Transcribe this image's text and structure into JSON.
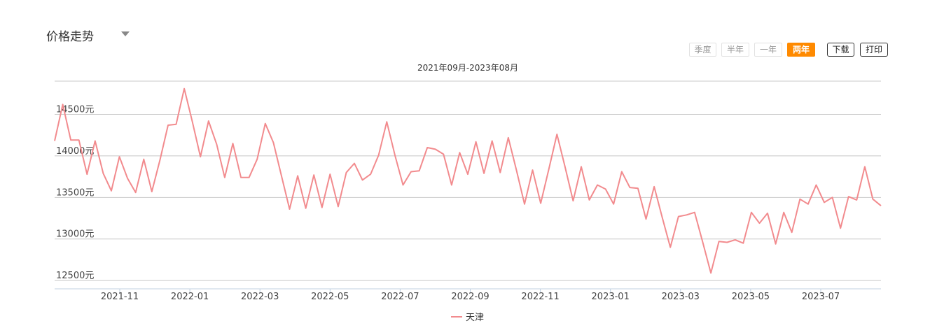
{
  "header": {
    "title": "价格走势",
    "dropdown_icon": "caret-down-icon"
  },
  "range_buttons": [
    {
      "label": "季度",
      "active": false
    },
    {
      "label": "半年",
      "active": false
    },
    {
      "label": "一年",
      "active": false
    },
    {
      "label": "两年",
      "active": true
    }
  ],
  "tools": {
    "download": "下载",
    "print": "打印"
  },
  "colors": {
    "series": "#f28b8e",
    "active": "#ff8a00",
    "grid": "#c8c8c8"
  },
  "chart_data": {
    "type": "line",
    "title": "2021年09月-2023年08月",
    "xlabel": "",
    "ylabel": "",
    "ylim": [
      12400,
      14900
    ],
    "y_ticks": [
      12500,
      13000,
      13500,
      14000,
      14500
    ],
    "y_unit": "元",
    "x_tick_labels": [
      "2021-11",
      "2022-01",
      "2022-03",
      "2022-05",
      "2022-07",
      "2022-09",
      "2022-11",
      "2023-01",
      "2023-03",
      "2023-05",
      "2023-07"
    ],
    "legend": {
      "position": "bottom",
      "label": "天津"
    },
    "grid": true,
    "series": [
      {
        "name": "天津",
        "values": [
          14180,
          14620,
          14190,
          14190,
          13780,
          14180,
          13790,
          13580,
          13990,
          13730,
          13560,
          13960,
          13570,
          13950,
          14370,
          14380,
          14810,
          14410,
          13990,
          14420,
          14140,
          13740,
          14150,
          13740,
          13740,
          13960,
          14390,
          14160,
          13760,
          13360,
          13760,
          13370,
          13770,
          13380,
          13780,
          13390,
          13800,
          13910,
          13710,
          13780,
          14010,
          14410,
          14010,
          13650,
          13810,
          13820,
          14100,
          14080,
          14020,
          13650,
          14040,
          13780,
          14170,
          13790,
          14180,
          13800,
          14220,
          13830,
          13420,
          13830,
          13430,
          13840,
          14260,
          13870,
          13460,
          13870,
          13470,
          13650,
          13600,
          13420,
          13810,
          13620,
          13610,
          13240,
          13630,
          13260,
          12900,
          13270,
          13290,
          13320,
          12960,
          12590,
          12970,
          12960,
          12990,
          12950,
          13320,
          13190,
          13310,
          12940,
          13320,
          13080,
          13480,
          13420,
          13650,
          13440,
          13500,
          13130,
          13510,
          13470,
          13870,
          13480,
          13400
        ]
      }
    ]
  }
}
